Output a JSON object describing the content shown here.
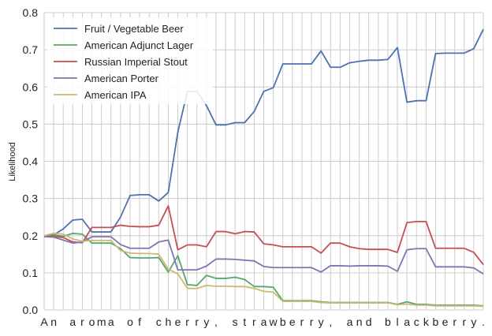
{
  "chart_data": {
    "type": "line",
    "title": "",
    "xlabel": "",
    "ylabel": "Likelihood",
    "ylim": [
      0,
      0.8
    ],
    "yticks": [
      "0.0",
      "0.1",
      "0.2",
      "0.3",
      "0.4",
      "0.5",
      "0.6",
      "0.7",
      "0.8"
    ],
    "grid": true,
    "legend_position": "top-left",
    "x": [
      "A",
      "n",
      " ",
      "a",
      "r",
      "o",
      "m",
      "a",
      " ",
      "o",
      "f",
      " ",
      "c",
      "h",
      "e",
      "r",
      "r",
      "y",
      ",",
      " ",
      "s",
      "t",
      "r",
      "a",
      "w",
      "b",
      "e",
      "r",
      "r",
      "y",
      ",",
      " ",
      "a",
      "n",
      "d",
      " ",
      "b",
      "l",
      "a",
      "c",
      "k",
      "b",
      "e",
      "r",
      "r",
      "y",
      "."
    ],
    "series": [
      {
        "name": "Fruit / Vegetable Beer",
        "color": "#4c72b0",
        "values": [
          0.198,
          0.202,
          0.218,
          0.242,
          0.244,
          0.21,
          0.21,
          0.21,
          0.25,
          0.308,
          0.31,
          0.31,
          0.293,
          0.316,
          0.478,
          0.588,
          0.588,
          0.55,
          0.498,
          0.498,
          0.504,
          0.504,
          0.534,
          0.588,
          0.598,
          0.662,
          0.662,
          0.662,
          0.662,
          0.697,
          0.653,
          0.653,
          0.665,
          0.669,
          0.672,
          0.672,
          0.674,
          0.706,
          0.559,
          0.563,
          0.563,
          0.69,
          0.691,
          0.691,
          0.691,
          0.703,
          0.755
        ]
      },
      {
        "name": "American Adjunct Lager",
        "color": "#55a868",
        "values": [
          0.2,
          0.202,
          0.198,
          0.206,
          0.204,
          0.18,
          0.18,
          0.18,
          0.165,
          0.141,
          0.14,
          0.14,
          0.141,
          0.102,
          0.146,
          0.068,
          0.066,
          0.093,
          0.085,
          0.085,
          0.088,
          0.082,
          0.063,
          0.063,
          0.061,
          0.025,
          0.025,
          0.025,
          0.025,
          0.022,
          0.02,
          0.02,
          0.02,
          0.02,
          0.02,
          0.02,
          0.02,
          0.015,
          0.022,
          0.015,
          0.015,
          0.013,
          0.013,
          0.013,
          0.013,
          0.013,
          0.011
        ]
      },
      {
        "name": "Russian Imperial Stout",
        "color": "#c44e52",
        "values": [
          0.198,
          0.198,
          0.195,
          0.183,
          0.181,
          0.222,
          0.222,
          0.222,
          0.228,
          0.225,
          0.224,
          0.224,
          0.228,
          0.28,
          0.162,
          0.175,
          0.175,
          0.17,
          0.211,
          0.211,
          0.205,
          0.211,
          0.21,
          0.178,
          0.175,
          0.17,
          0.17,
          0.17,
          0.17,
          0.153,
          0.18,
          0.18,
          0.17,
          0.165,
          0.163,
          0.163,
          0.163,
          0.155,
          0.235,
          0.238,
          0.238,
          0.166,
          0.166,
          0.166,
          0.166,
          0.155,
          0.122
        ]
      },
      {
        "name": "American Porter",
        "color": "#8172b2",
        "values": [
          0.197,
          0.196,
          0.188,
          0.18,
          0.183,
          0.197,
          0.197,
          0.197,
          0.176,
          0.166,
          0.166,
          0.166,
          0.183,
          0.188,
          0.108,
          0.108,
          0.108,
          0.118,
          0.137,
          0.137,
          0.136,
          0.134,
          0.132,
          0.117,
          0.114,
          0.114,
          0.114,
          0.114,
          0.114,
          0.102,
          0.119,
          0.119,
          0.118,
          0.119,
          0.119,
          0.119,
          0.118,
          0.104,
          0.162,
          0.165,
          0.165,
          0.116,
          0.116,
          0.116,
          0.116,
          0.113,
          0.097
        ]
      },
      {
        "name": "American IPA",
        "color": "#ccb974",
        "values": [
          0.2,
          0.206,
          0.204,
          0.191,
          0.185,
          0.187,
          0.187,
          0.187,
          0.16,
          0.153,
          0.152,
          0.152,
          0.15,
          0.11,
          0.097,
          0.058,
          0.058,
          0.066,
          0.064,
          0.064,
          0.063,
          0.063,
          0.058,
          0.05,
          0.048,
          0.023,
          0.023,
          0.023,
          0.023,
          0.02,
          0.019,
          0.019,
          0.019,
          0.019,
          0.019,
          0.019,
          0.019,
          0.014,
          0.016,
          0.013,
          0.013,
          0.011,
          0.011,
          0.011,
          0.011,
          0.011,
          0.01
        ]
      }
    ]
  }
}
